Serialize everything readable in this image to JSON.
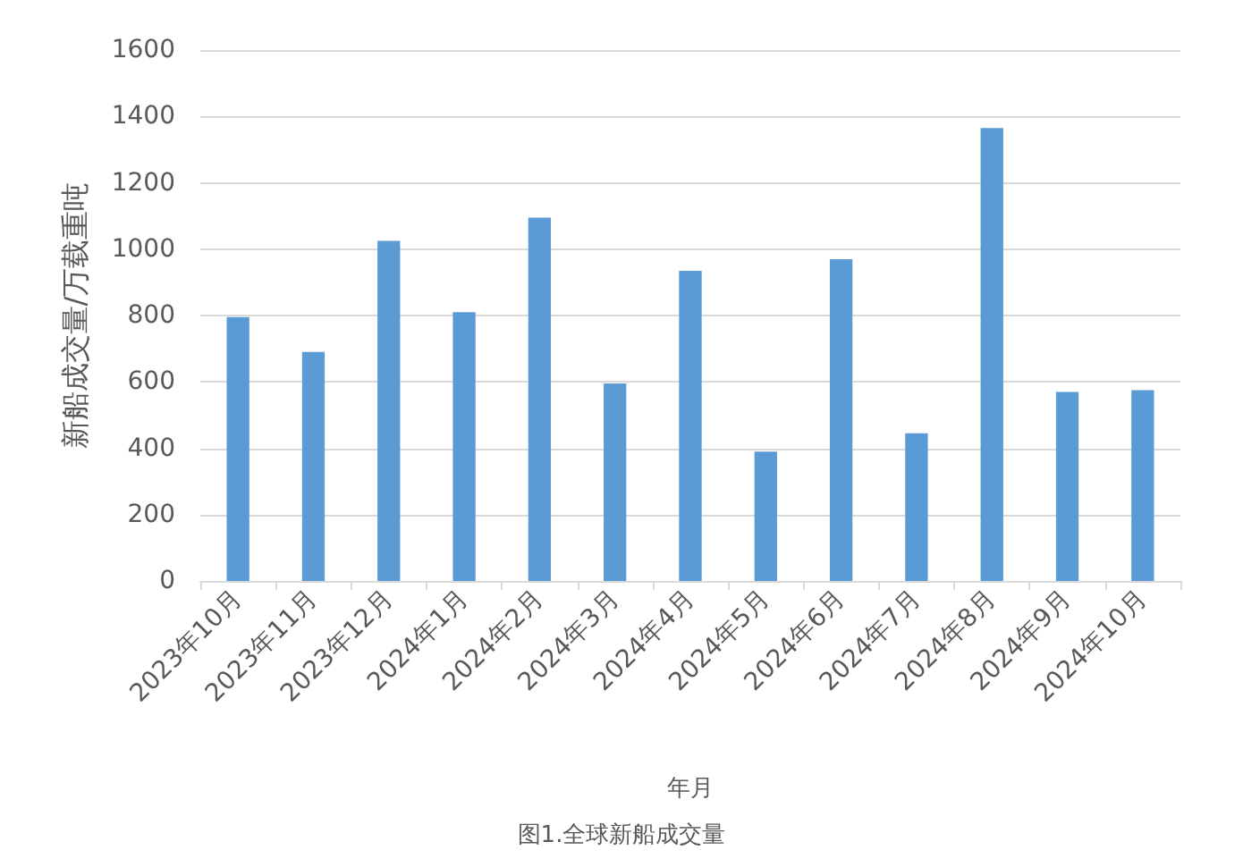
{
  "chart_data": {
    "type": "bar",
    "title": "图1.全球新船成交量",
    "xlabel": "年月",
    "ylabel": "新船成交量/万载重吨",
    "categories": [
      "2023年10月",
      "2023年11月",
      "2023年12月",
      "2024年1月",
      "2024年2月",
      "2024年3月",
      "2024年4月",
      "2024年5月",
      "2024年6月",
      "2024年7月",
      "2024年8月",
      "2024年9月",
      "2024年10月"
    ],
    "values": [
      795,
      690,
      1025,
      810,
      1095,
      595,
      935,
      390,
      970,
      445,
      1365,
      570,
      575
    ],
    "color": "#5b9bd5",
    "ylim": [
      0,
      1600
    ],
    "yticks": [
      0,
      200,
      400,
      600,
      800,
      1000,
      1200,
      1400,
      1600
    ],
    "grid": "y"
  }
}
